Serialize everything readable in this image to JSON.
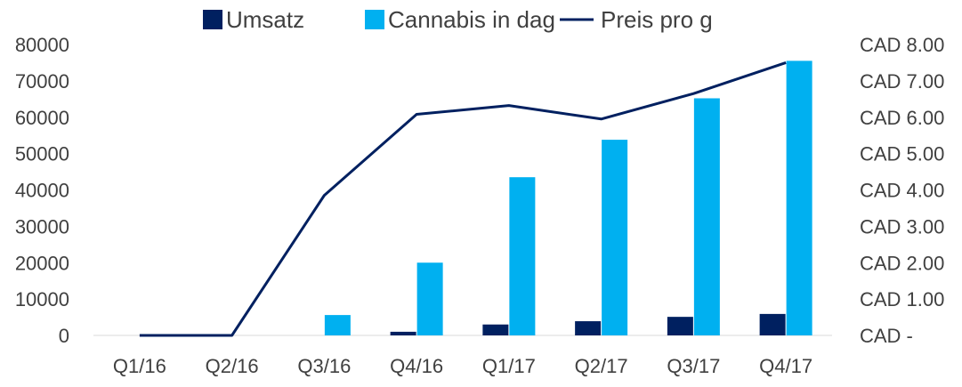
{
  "chart_data": {
    "type": "bar",
    "categories": [
      "Q1/16",
      "Q2/16",
      "Q3/16",
      "Q4/16",
      "Q1/17",
      "Q2/17",
      "Q3/17",
      "Q4/17"
    ],
    "series": [
      {
        "name": "Umsatz",
        "type": "bar",
        "axis": "left",
        "color": "#002060",
        "values": [
          0,
          0,
          0,
          1000,
          3000,
          3900,
          5100,
          5900
        ]
      },
      {
        "name": "Cannabis in dag",
        "type": "bar",
        "axis": "left",
        "color": "#00B0F0",
        "values": [
          0,
          0,
          5600,
          20000,
          43500,
          53800,
          65200,
          75500
        ]
      },
      {
        "name": "Preis pro g",
        "type": "line",
        "axis": "right",
        "color": "#002060",
        "values": [
          0,
          0,
          3.85,
          6.08,
          6.32,
          5.95,
          6.65,
          7.5
        ]
      }
    ],
    "y_left": {
      "min": 0,
      "max": 80000,
      "step": 10000,
      "tick_labels": [
        "0",
        "10000",
        "20000",
        "30000",
        "40000",
        "50000",
        "60000",
        "70000",
        "80000"
      ]
    },
    "y_right": {
      "min": 0,
      "max": 8,
      "step": 1,
      "tick_labels": [
        "CAD -",
        "CAD 1.00",
        "CAD 2.00",
        "CAD 3.00",
        "CAD 4.00",
        "CAD 5.00",
        "CAD 6.00",
        "CAD 7.00",
        "CAD 8.00"
      ]
    },
    "grid": false,
    "legend_position": "top",
    "title": "",
    "xlabel": "",
    "ylabel": ""
  }
}
